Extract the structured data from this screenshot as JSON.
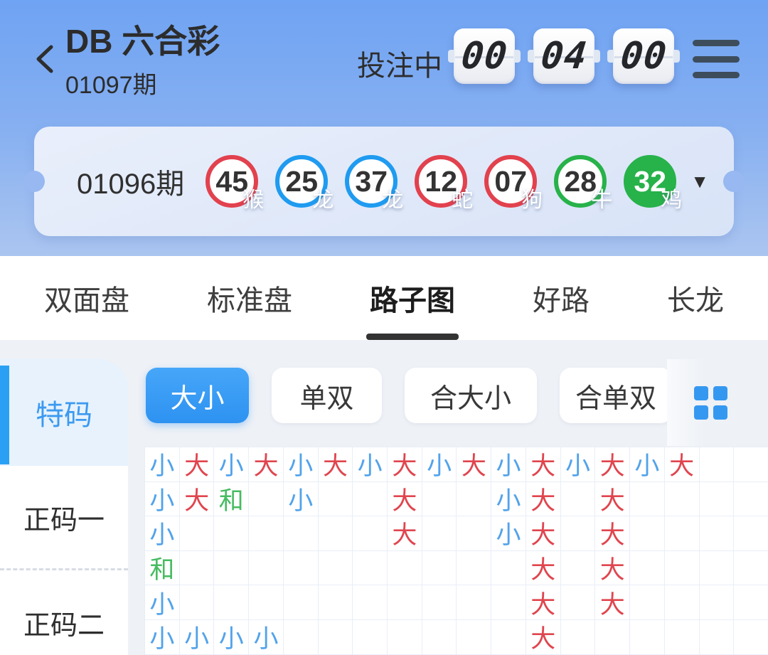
{
  "header": {
    "title": "DB 六合彩",
    "period": "01097期",
    "status_label": "投注中",
    "clock": {
      "h": "00",
      "m": "04",
      "s": "00"
    },
    "back_icon": "chevron-left",
    "menu_icon": "hamburger-menu"
  },
  "result": {
    "period": "01096期",
    "expand_icon": "▼",
    "ball_colors": {
      "red": "#e2414e",
      "blue": "#1f9bf0",
      "green": "#27b24a"
    },
    "balls": [
      {
        "number": "45",
        "zodiac": "猴",
        "color": "red",
        "filled": false
      },
      {
        "number": "25",
        "zodiac": "龙",
        "color": "blue",
        "filled": false
      },
      {
        "number": "37",
        "zodiac": "龙",
        "color": "blue",
        "filled": false
      },
      {
        "number": "12",
        "zodiac": "蛇",
        "color": "red",
        "filled": false
      },
      {
        "number": "07",
        "zodiac": "狗",
        "color": "red",
        "filled": false
      },
      {
        "number": "28",
        "zodiac": "牛",
        "color": "green",
        "filled": false
      },
      {
        "number": "32",
        "zodiac": "鸡",
        "color": "green",
        "filled": true
      }
    ]
  },
  "tabs": [
    {
      "label": "双面盘",
      "active": false
    },
    {
      "label": "标准盘",
      "active": false
    },
    {
      "label": "路子图",
      "active": true
    },
    {
      "label": "好路",
      "active": false
    },
    {
      "label": "长龙",
      "active": false
    }
  ],
  "sidebar": {
    "items": [
      {
        "label": "特码",
        "active": true
      },
      {
        "label": "正码一",
        "active": false
      },
      {
        "label": "正码二",
        "active": false
      }
    ]
  },
  "filters": {
    "items": [
      {
        "label": "大小",
        "active": true
      },
      {
        "label": "单双",
        "active": false
      },
      {
        "label": "合大小",
        "active": false
      },
      {
        "label": "合单双",
        "active": false
      }
    ],
    "more_icon": "grid-2x2"
  },
  "grid": {
    "columns": 18,
    "colors": {
      "小": "#52a3ea",
      "大": "#e0454e",
      "和": "#47bb61"
    },
    "rows": [
      [
        "小",
        "大",
        "小",
        "大",
        "小",
        "大",
        "小",
        "大",
        "小",
        "大",
        "小",
        "大",
        "小",
        "大",
        "小",
        "大",
        "",
        ""
      ],
      [
        "小",
        "大",
        "和",
        "",
        "小",
        "",
        "",
        "大",
        "",
        "",
        "小",
        "大",
        "",
        "大",
        "",
        "",
        "",
        ""
      ],
      [
        "小",
        "",
        "",
        "",
        "",
        "",
        "",
        "大",
        "",
        "",
        "小",
        "大",
        "",
        "大",
        "",
        "",
        "",
        ""
      ],
      [
        "和",
        "",
        "",
        "",
        "",
        "",
        "",
        "",
        "",
        "",
        "",
        "大",
        "",
        "大",
        "",
        "",
        "",
        ""
      ],
      [
        "小",
        "",
        "",
        "",
        "",
        "",
        "",
        "",
        "",
        "",
        "",
        "大",
        "",
        "大",
        "",
        "",
        "",
        ""
      ],
      [
        "小",
        "小",
        "小",
        "小",
        "",
        "",
        "",
        "",
        "",
        "",
        "",
        "大",
        "",
        "",
        "",
        "",
        "",
        ""
      ]
    ]
  }
}
